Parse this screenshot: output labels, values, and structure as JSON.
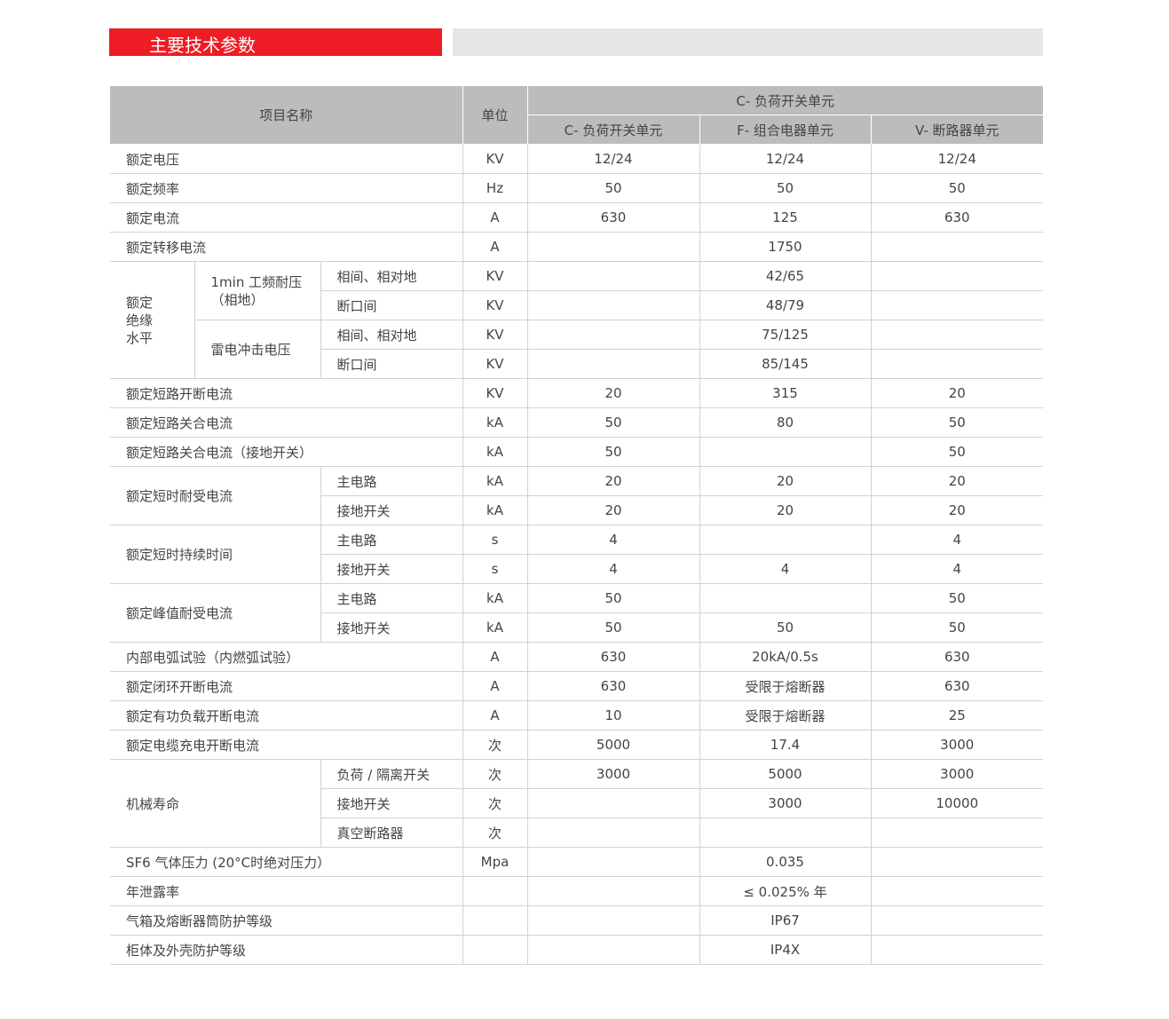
{
  "title": "主要技术参数",
  "header": {
    "item": "项目名称",
    "unit": "单位",
    "group": "C- 负荷开关单元",
    "columns": [
      "C- 负荷开关单元",
      "F- 组合电器单元",
      "V- 断路器单元"
    ]
  },
  "table": {
    "rows": [
      {
        "label": "额定电压",
        "unit": "KV",
        "values": [
          "12/24",
          "12/24",
          "12/24"
        ]
      },
      {
        "label": "额定频率",
        "unit": "Hz",
        "values": [
          "50",
          "50",
          "50"
        ]
      },
      {
        "label": "额定电流",
        "unit": "A",
        "values": [
          "630",
          "125",
          "630"
        ]
      },
      {
        "label": "额定转移电流",
        "unit": "A",
        "values": [
          "",
          "1750",
          ""
        ]
      },
      {
        "label": "额定绝缘水平",
        "groups": [
          {
            "label": "1min 工频耐压（相地）",
            "children": [
              {
                "label": "相间、相对地",
                "unit": "KV",
                "values": [
                  "",
                  "42/65",
                  ""
                ]
              },
              {
                "label": "断口间",
                "unit": "KV",
                "values": [
                  "",
                  "48/79",
                  ""
                ]
              }
            ]
          },
          {
            "label": "雷电冲击电压",
            "children": [
              {
                "label": "相间、相对地",
                "unit": "KV",
                "values": [
                  "",
                  "75/125",
                  ""
                ]
              },
              {
                "label": "断口间",
                "unit": "KV",
                "values": [
                  "",
                  "85/145",
                  ""
                ]
              }
            ]
          }
        ]
      },
      {
        "label": "额定短路开断电流",
        "unit": "KV",
        "values": [
          "20",
          "315",
          "20"
        ]
      },
      {
        "label": "额定短路关合电流",
        "unit": "kA",
        "values": [
          "50",
          "80",
          "50"
        ]
      },
      {
        "label": "额定短路关合电流（接地开关）",
        "unit": "kA",
        "values": [
          "50",
          "",
          "50"
        ]
      },
      {
        "label": "额定短时耐受电流",
        "children": [
          {
            "label": "主电路",
            "unit": "kA",
            "values": [
              "20",
              "20",
              "20"
            ]
          },
          {
            "label": "接地开关",
            "unit": "kA",
            "values": [
              "20",
              "20",
              "20"
            ]
          }
        ]
      },
      {
        "label": "额定短时持续时间",
        "children": [
          {
            "label": "主电路",
            "unit": "s",
            "values": [
              "4",
              "",
              "4"
            ]
          },
          {
            "label": "接地开关",
            "unit": "s",
            "values": [
              "4",
              "4",
              "4"
            ]
          }
        ]
      },
      {
        "label": "额定峰值耐受电流",
        "children": [
          {
            "label": "主电路",
            "unit": "kA",
            "values": [
              "50",
              "",
              "50"
            ]
          },
          {
            "label": "接地开关",
            "unit": "kA",
            "values": [
              "50",
              "50",
              "50"
            ]
          }
        ]
      },
      {
        "label": "内部电弧试验（内燃弧试验）",
        "unit": "A",
        "values": [
          "630",
          "20kA/0.5s",
          "630"
        ]
      },
      {
        "label": "额定闭环开断电流",
        "unit": "A",
        "values": [
          "630",
          "受限于熔断器",
          "630"
        ]
      },
      {
        "label": "额定有功负载开断电流",
        "unit": "A",
        "values": [
          "10",
          "受限于熔断器",
          "25"
        ]
      },
      {
        "label": "额定电缆充电开断电流",
        "unit": "次",
        "values": [
          "5000",
          "17.4",
          "3000"
        ]
      },
      {
        "label": "机械寿命",
        "children": [
          {
            "label": "负荷 / 隔离开关",
            "unit": "次",
            "values": [
              "3000",
              "5000",
              "3000"
            ]
          },
          {
            "label": "接地开关",
            "unit": "次",
            "values": [
              "",
              "3000",
              "10000"
            ]
          },
          {
            "label": "真空断路器",
            "unit": "次",
            "values": [
              "",
              "",
              ""
            ]
          }
        ]
      },
      {
        "label": "SF6 气体压力 (20°C时绝对压力）",
        "unit": "Mpa",
        "values": [
          "",
          "0.035",
          ""
        ]
      },
      {
        "label": "年泄露率",
        "unit": "",
        "values": [
          "",
          "≤ 0.025% 年",
          ""
        ]
      },
      {
        "label": "气箱及熔断器筒防护等级",
        "unit": "",
        "values": [
          "",
          "IP67",
          ""
        ]
      },
      {
        "label": "柜体及外壳防护等级",
        "unit": "",
        "values": [
          "",
          "IP4X",
          ""
        ]
      }
    ]
  }
}
